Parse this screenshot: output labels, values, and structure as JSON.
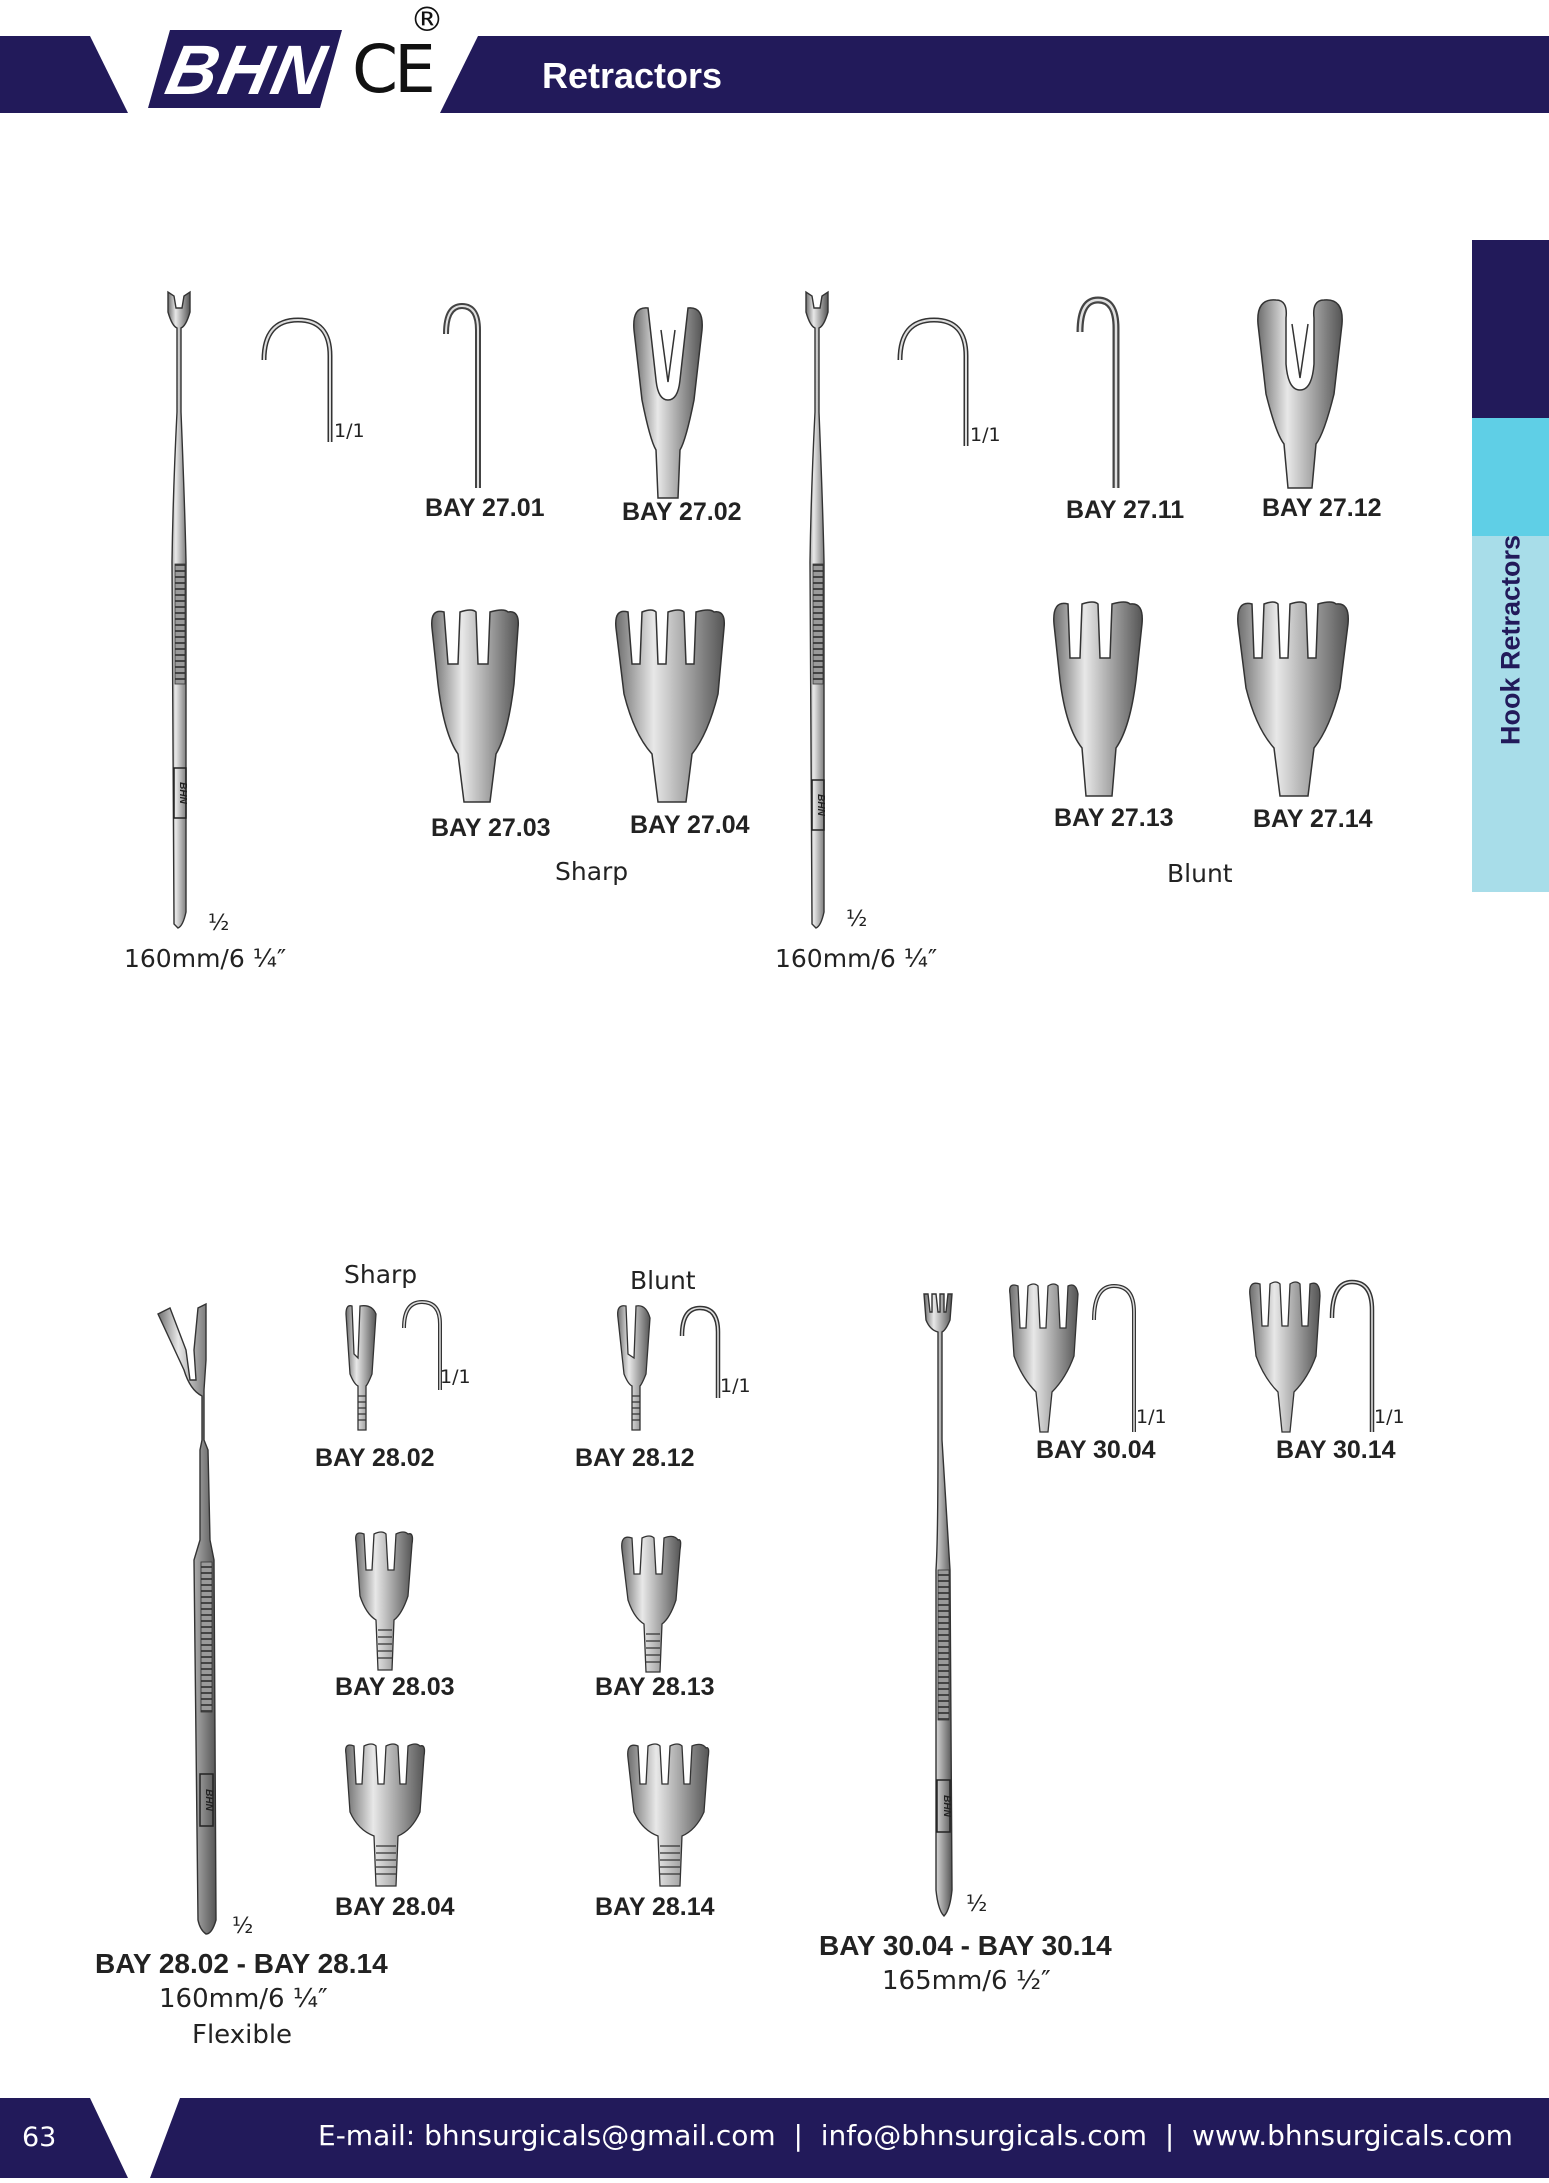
{
  "header": {
    "logo_text": "BHN",
    "ce_mark": "CE",
    "registered_mark": "®",
    "title": "Retractors",
    "bg_color": "#221a5a"
  },
  "side_tab": {
    "label": "Hook Retractors",
    "colors": [
      "#221a5a",
      "#5fcfe6",
      "#a8dde9"
    ]
  },
  "group1": {
    "scale_left": "1/1",
    "scale_right": "1/1",
    "half_left": "½",
    "half_right": "½",
    "size_left": "160mm/6 ¼″",
    "size_right": "160mm/6 ¼″",
    "sharp_label": "Sharp",
    "blunt_label": "Blunt",
    "items": {
      "b2701": "BAY 27.01",
      "b2702": "BAY 27.02",
      "b2703": "BAY 27.03",
      "b2704": "BAY 27.04",
      "b2711": "BAY 27.11",
      "b2712": "BAY 27.12",
      "b2713": "BAY 27.13",
      "b2714": "BAY 27.14"
    }
  },
  "group2": {
    "sharp_label": "Sharp",
    "blunt_label": "Blunt",
    "scale": "1/1",
    "half": "½",
    "items": {
      "b2802": "BAY 28.02",
      "b2803": "BAY 28.03",
      "b2804": "BAY 28.04",
      "b2812": "BAY 28.12",
      "b2813": "BAY 28.13",
      "b2814": "BAY 28.14"
    },
    "caption": "BAY 28.02 - BAY 28.14",
    "size": "160mm/6 ¼″",
    "note": "Flexible"
  },
  "group3": {
    "scale": "1/1",
    "half": "½",
    "items": {
      "b3004": "BAY 30.04",
      "b3014": "BAY 30.14"
    },
    "caption": "BAY 30.04 - BAY 30.14",
    "size": "165mm/6 ½″"
  },
  "footer": {
    "page_number": "63",
    "contact": "E-mail: bhnsurgicals@gmail.com  |  info@bhnsurgicals.com  |  www.bhnsurgicals.com"
  }
}
